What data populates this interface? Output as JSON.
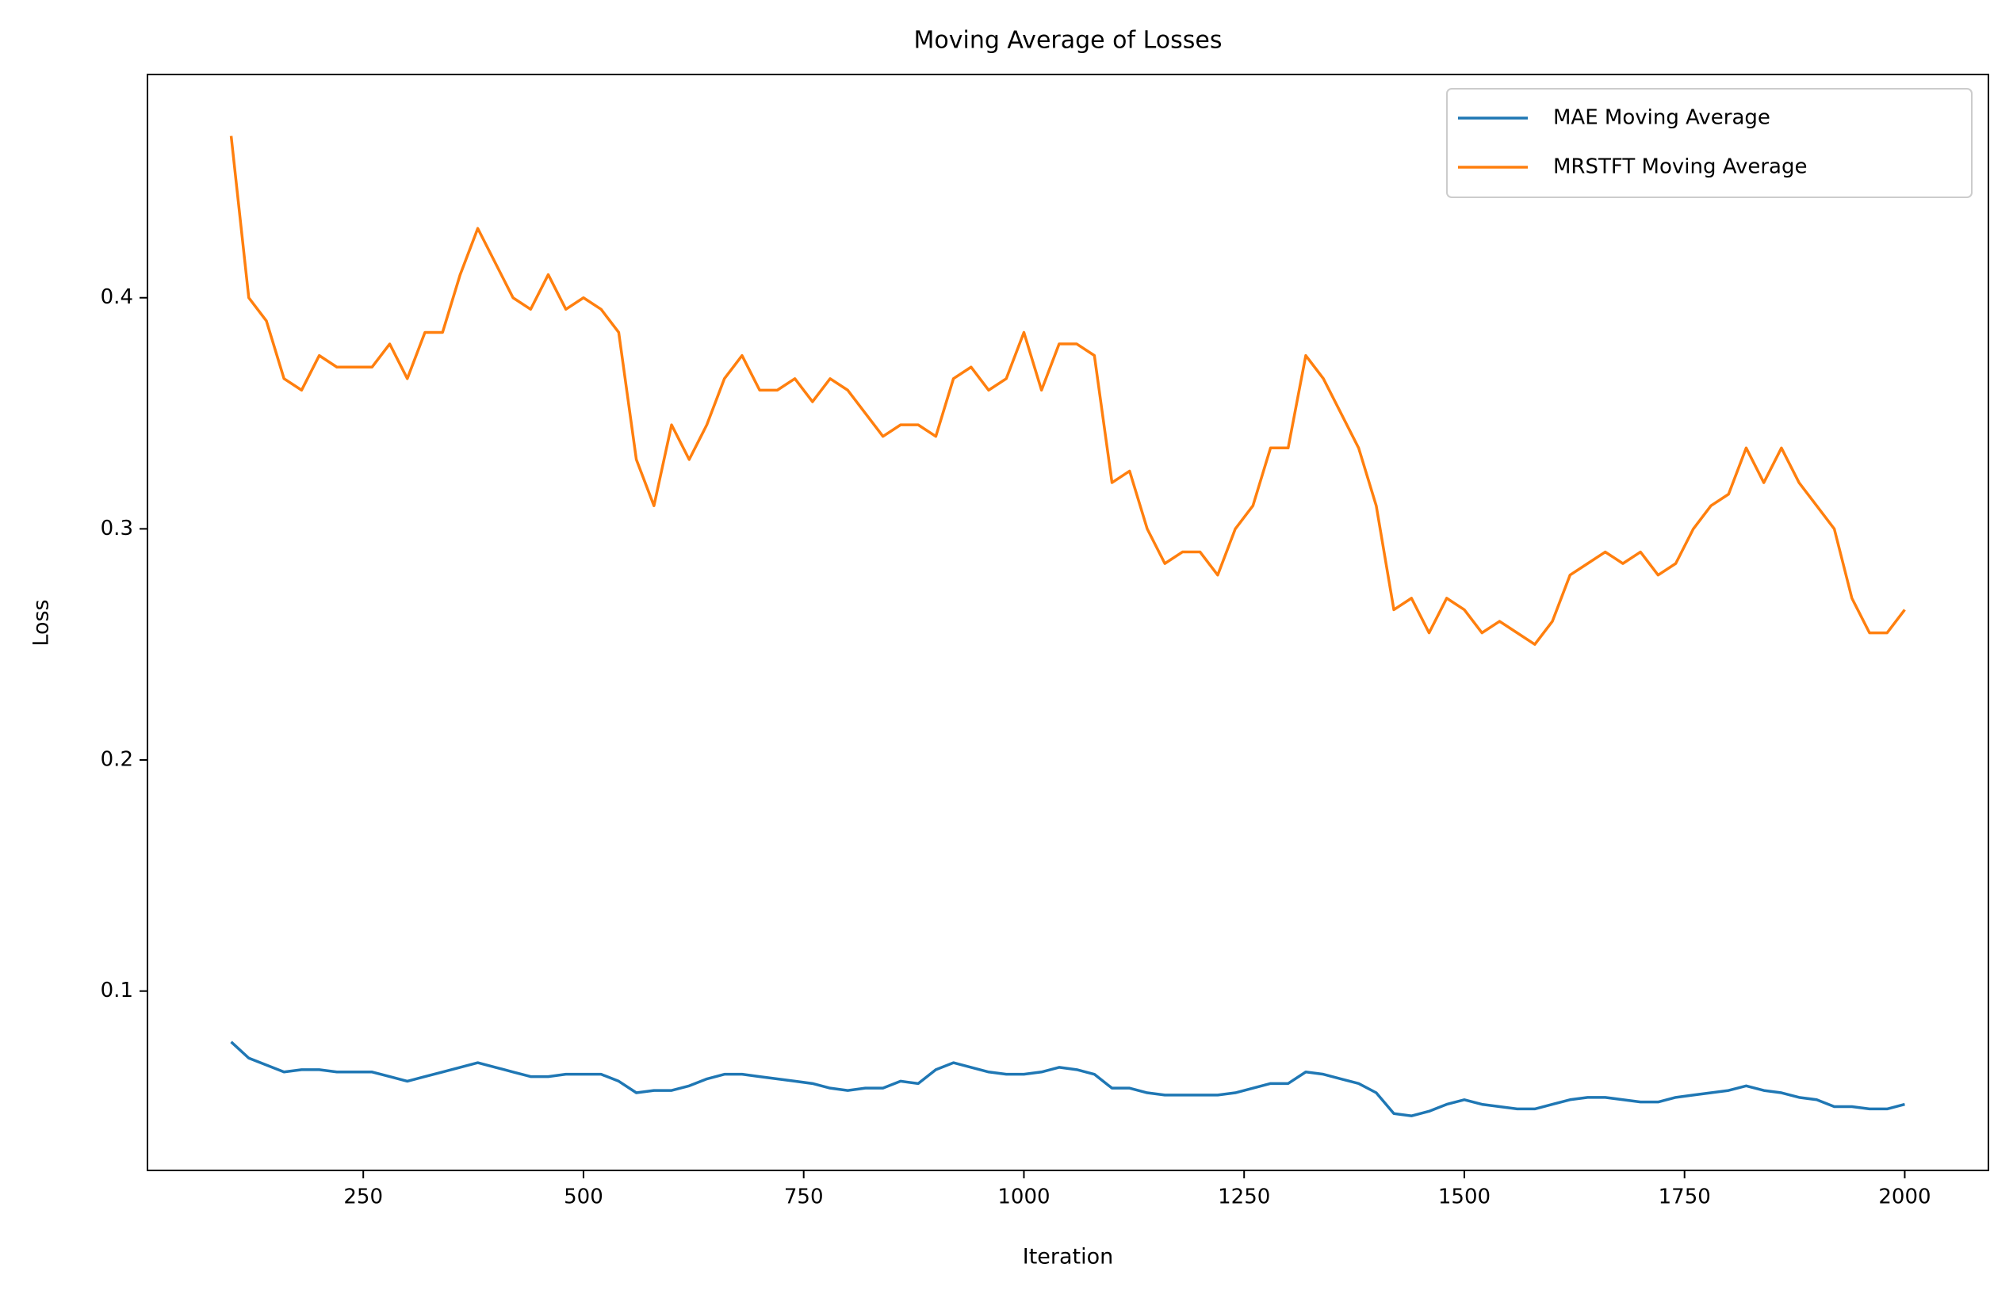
{
  "chart_data": {
    "type": "line",
    "title": "Moving Average of Losses",
    "x_label": "Iteration",
    "y_label": "Loss",
    "x": [
      100,
      120,
      140,
      160,
      180,
      200,
      220,
      240,
      260,
      280,
      300,
      320,
      340,
      360,
      380,
      400,
      420,
      440,
      460,
      480,
      500,
      520,
      540,
      560,
      580,
      600,
      620,
      640,
      660,
      680,
      700,
      720,
      740,
      760,
      780,
      800,
      820,
      840,
      860,
      880,
      900,
      920,
      940,
      960,
      980,
      1000,
      1020,
      1040,
      1060,
      1080,
      1100,
      1120,
      1140,
      1160,
      1180,
      1200,
      1220,
      1240,
      1260,
      1280,
      1300,
      1320,
      1340,
      1360,
      1380,
      1400,
      1420,
      1440,
      1460,
      1480,
      1500,
      1520,
      1540,
      1560,
      1580,
      1600,
      1620,
      1640,
      1660,
      1680,
      1700,
      1720,
      1740,
      1760,
      1780,
      1800,
      1820,
      1840,
      1860,
      1880,
      1900,
      1920,
      1940,
      1960,
      1980,
      2000
    ],
    "series": [
      {
        "name": "MAE Moving Average",
        "color": "#1f77b4",
        "values": [
          0.078,
          0.071,
          0.068,
          0.065,
          0.066,
          0.066,
          0.065,
          0.065,
          0.065,
          0.063,
          0.061,
          0.063,
          0.065,
          0.067,
          0.069,
          0.067,
          0.065,
          0.063,
          0.063,
          0.064,
          0.064,
          0.064,
          0.061,
          0.056,
          0.057,
          0.057,
          0.059,
          0.062,
          0.064,
          0.064,
          0.063,
          0.062,
          0.061,
          0.06,
          0.058,
          0.057,
          0.058,
          0.058,
          0.061,
          0.06,
          0.066,
          0.069,
          0.067,
          0.065,
          0.064,
          0.064,
          0.065,
          0.067,
          0.066,
          0.064,
          0.058,
          0.058,
          0.056,
          0.055,
          0.055,
          0.055,
          0.055,
          0.056,
          0.058,
          0.06,
          0.06,
          0.065,
          0.064,
          0.062,
          0.06,
          0.056,
          0.047,
          0.046,
          0.048,
          0.051,
          0.053,
          0.051,
          0.05,
          0.049,
          0.049,
          0.051,
          0.053,
          0.054,
          0.054,
          0.053,
          0.052,
          0.052,
          0.054,
          0.055,
          0.056,
          0.057,
          0.059,
          0.057,
          0.056,
          0.054,
          0.053,
          0.05,
          0.05,
          0.049,
          0.049,
          0.051
        ]
      },
      {
        "name": "MRSTFT Moving Average",
        "color": "#ff7f0e",
        "values": [
          0.47,
          0.4,
          0.39,
          0.365,
          0.36,
          0.375,
          0.37,
          0.37,
          0.37,
          0.38,
          0.365,
          0.385,
          0.385,
          0.41,
          0.43,
          0.415,
          0.4,
          0.395,
          0.41,
          0.395,
          0.4,
          0.395,
          0.385,
          0.33,
          0.31,
          0.345,
          0.33,
          0.345,
          0.365,
          0.375,
          0.36,
          0.36,
          0.365,
          0.355,
          0.365,
          0.36,
          0.35,
          0.34,
          0.345,
          0.345,
          0.34,
          0.365,
          0.37,
          0.36,
          0.365,
          0.385,
          0.36,
          0.38,
          0.38,
          0.375,
          0.32,
          0.325,
          0.3,
          0.285,
          0.29,
          0.29,
          0.28,
          0.3,
          0.31,
          0.335,
          0.335,
          0.375,
          0.365,
          0.35,
          0.335,
          0.31,
          0.265,
          0.27,
          0.255,
          0.27,
          0.265,
          0.255,
          0.26,
          0.255,
          0.25,
          0.26,
          0.28,
          0.285,
          0.29,
          0.285,
          0.29,
          0.28,
          0.285,
          0.3,
          0.31,
          0.315,
          0.335,
          0.32,
          0.335,
          0.32,
          0.31,
          0.3,
          0.27,
          0.255,
          0.255,
          0.265
        ]
      }
    ],
    "xlim": [
      5,
      2095
    ],
    "xticks": [
      250,
      500,
      750,
      1000,
      1250,
      1500,
      1750,
      2000
    ],
    "ylim": [
      0.0224,
      0.4966
    ],
    "yticks": [
      0.1,
      0.2,
      0.3,
      0.4
    ],
    "legend": "upper right",
    "grid": false
  }
}
